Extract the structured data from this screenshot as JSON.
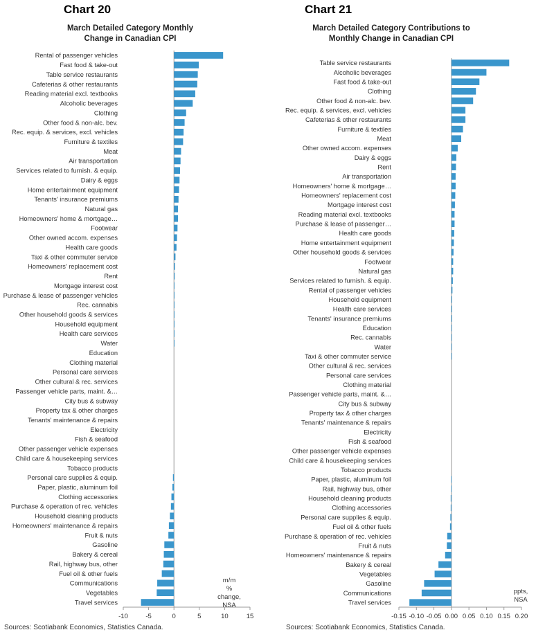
{
  "chart_data": [
    {
      "type": "bar",
      "orientation": "horizontal",
      "chart_label": "Chart 20",
      "title": "March Detailed Category Monthly Change in Canadian CPI",
      "annotation": "m/m % change, NSA",
      "source": "Sources: Scotiabank Economics, Statistics Canada.",
      "xlim": [
        -10,
        15
      ],
      "xticks": [
        -10,
        -5,
        0,
        5,
        10,
        15
      ],
      "bar_color": "#3a96cc",
      "categories": [
        "Rental of passenger vehicles",
        "Fast food & take-out",
        "Table service restaurants",
        "Cafeterias & other restaurants",
        "Reading material excl. textbooks",
        "Alcoholic beverages",
        "Clothing",
        "Other food & non-alc. bev.",
        "Rec. equip. & services, excl. vehicles",
        "Furniture & textiles",
        "Meat",
        "Air transportation",
        "Services related to furnish. & equip.",
        "Dairy & eggs",
        "Home entertainment equipment",
        "Tenants' insurance premiums",
        "Natural gas",
        "Homeowners' home & mortgage…",
        "Footwear",
        "Other owned accom. expenses",
        "Health care goods",
        "Taxi & other commuter service",
        "Homeowners' replacement cost",
        "Rent",
        "Mortgage interest cost",
        "Purchase & lease of passenger vehicles",
        "Rec. cannabis",
        "Other household goods & services",
        "Household equipment",
        "Health care services",
        "Water",
        "Education",
        "Clothing material",
        "Personal care services",
        "Other cultural & rec. services",
        "Passenger vehicle parts, maint. &…",
        "City bus & subway",
        "Property tax & other charges",
        "Tenants' maintenance & repairs",
        "Electricity",
        "Fish & seafood",
        "Other passenger vehicle expenses",
        "Child care & housekeeping services",
        "Tobacco products",
        "Personal care supplies & equip.",
        "Paper, plastic, aluminum foil",
        "Clothing accessories",
        "Purchase & operation of rec. vehicles",
        "Household cleaning products",
        "Homeowners' maintenance & repairs",
        "Fruit & nuts",
        "Gasoline",
        "Bakery & cereal",
        "Rail, highway bus, other",
        "Fuel oil & other fuels",
        "Communications",
        "Vegetables",
        "Travel services"
      ],
      "values": [
        9.7,
        4.9,
        4.7,
        4.6,
        4.2,
        3.7,
        2.4,
        2.1,
        1.9,
        1.8,
        1.4,
        1.3,
        1.2,
        1.1,
        1.0,
        0.9,
        0.8,
        0.8,
        0.7,
        0.6,
        0.5,
        0.3,
        0.2,
        0.15,
        0.1,
        0.1,
        0.05,
        0.05,
        0.03,
        0.02,
        0.01,
        0,
        0,
        0,
        0,
        0,
        0,
        0,
        0,
        0,
        0,
        0,
        0,
        0,
        -0.2,
        -0.3,
        -0.5,
        -0.6,
        -0.8,
        -1.0,
        -1.1,
        -1.9,
        -2.0,
        -2.1,
        -2.4,
        -3.3,
        -3.4,
        -6.5
      ]
    },
    {
      "type": "bar",
      "orientation": "horizontal",
      "chart_label": "Chart 21",
      "title": "March Detailed Category Contributions to Monthly Change in Canadian CPI",
      "annotation": "ppts, NSA",
      "source": "Sources: Scotiabank Economics, Statistics Canada.",
      "xlim": [
        -0.15,
        0.2
      ],
      "xticks": [
        -0.15,
        -0.1,
        -0.05,
        0,
        0.05,
        0.1,
        0.15,
        0.2
      ],
      "xtick_labels": [
        "-0.15",
        "-0.10",
        "-0.05",
        "0.00",
        "0.05",
        "0.10",
        "0.15",
        "0.20"
      ],
      "bar_color": "#3a96cc",
      "categories": [
        "Table service restaurants",
        "Alcoholic beverages",
        "Fast food & take-out",
        "Clothing",
        "Other food & non-alc. bev.",
        "Rec. equip. & services, excl. vehicles",
        "Cafeterias & other restaurants",
        "Furniture & textiles",
        "Meat",
        "Other owned accom. expenses",
        "Dairy & eggs",
        "Rent",
        "Air transportation",
        "Homeowners' home & mortgage…",
        "Homeowners' replacement cost",
        "Mortgage interest cost",
        "Reading material excl. textbooks",
        "Purchase & lease of passenger…",
        "Health care goods",
        "Home entertainment equipment",
        "Other household goods & services",
        "Footwear",
        "Natural gas",
        "Services related to furnish. & equip.",
        "Rental of passenger vehicles",
        "Household equipment",
        "Health care services",
        "Tenants' insurance premiums",
        "Education",
        "Rec. cannabis",
        "Water",
        "Taxi & other commuter service",
        "Other cultural & rec. services",
        "Personal care services",
        "Clothing material",
        "Passenger vehicle parts, maint. &…",
        "City bus & subway",
        "Property tax & other charges",
        "Tenants' maintenance & repairs",
        "Electricity",
        "Fish & seafood",
        "Other passenger vehicle expenses",
        "Child care & housekeeping services",
        "Tobacco products",
        "Paper, plastic, aluminum foil",
        "Rail, highway bus, other",
        "Household cleaning products",
        "Clothing accessories",
        "Personal care supplies & equip.",
        "Fuel oil & other fuels",
        "Purchase & operation of rec. vehicles",
        "Fruit & nuts",
        "Homeowners' maintenance & repairs",
        "Bakery & cereal",
        "Vegetables",
        "Gasoline",
        "Communications",
        "Travel services"
      ],
      "values": [
        0.165,
        0.1,
        0.08,
        0.07,
        0.062,
        0.04,
        0.04,
        0.033,
        0.028,
        0.018,
        0.014,
        0.013,
        0.012,
        0.012,
        0.011,
        0.01,
        0.009,
        0.009,
        0.008,
        0.007,
        0.006,
        0.005,
        0.005,
        0.004,
        0.003,
        0.002,
        0.002,
        0.002,
        0.001,
        0.001,
        0.001,
        0.001,
        0,
        0,
        0,
        0,
        0,
        0,
        0,
        0,
        0,
        0,
        0,
        0,
        -0.001,
        -0.001,
        -0.002,
        -0.002,
        -0.003,
        -0.004,
        -0.012,
        -0.013,
        -0.018,
        -0.037,
        -0.048,
        -0.078,
        -0.085,
        -0.12
      ]
    }
  ]
}
